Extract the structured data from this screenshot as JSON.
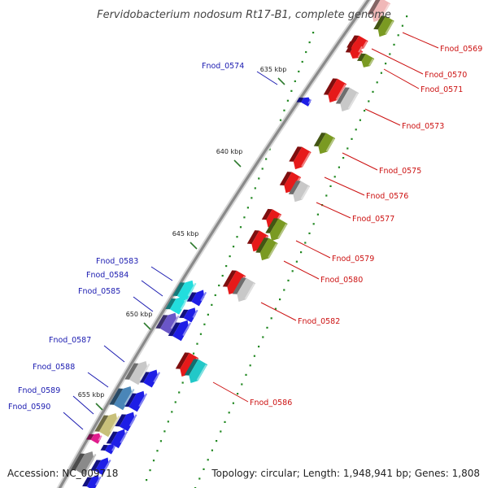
{
  "title": "Fervidobacterium nodosum Rt17-B1, complete genome",
  "footer": {
    "accession": "Accession: NC_009718",
    "stats": "Topology: circular; Length: 1,948,941 bp; Genes: 1,808"
  },
  "ticks": [
    {
      "label": "635 kbp"
    },
    {
      "label": "640 kbp"
    },
    {
      "label": "645 kbp"
    },
    {
      "label": "650 kbp"
    },
    {
      "label": "655 kbp"
    }
  ],
  "genes": {
    "inner": [
      {
        "label": "Fnod_0574",
        "color": "#1e1ee6"
      },
      {
        "label": "Fnod_0583",
        "color": "#22dddd"
      },
      {
        "label": "Fnod_0584",
        "color": "#22dddd"
      },
      {
        "label": "Fnod_0585",
        "color": "#6a56c8"
      },
      {
        "label": "Fnod_0587",
        "color": "#c8c8c8"
      },
      {
        "label": "Fnod_0588",
        "color": "#4a86b8"
      },
      {
        "label": "Fnod_0589",
        "color": "#c8c07a"
      },
      {
        "label": "Fnod_0590",
        "color": "#e01c8c"
      }
    ],
    "outer": [
      {
        "label": "Fnod_0569",
        "color": "#7a9a22"
      },
      {
        "label": "Fnod_0570",
        "color": "#e61a1a"
      },
      {
        "label": "Fnod_0571",
        "color": "#7a9a22"
      },
      {
        "label": "Fnod_0573",
        "color": "#c8c8c8"
      },
      {
        "label": "Fnod_0575",
        "color": "#7a9a22"
      },
      {
        "label": "Fnod_0576",
        "color": "#e61a1a"
      },
      {
        "label": "Fnod_0577",
        "color": "#c8c8c8"
      },
      {
        "label": "Fnod_0579",
        "color": "#7a9a22"
      },
      {
        "label": "Fnod_0580",
        "color": "#7a9a22"
      },
      {
        "label": "Fnod_0582",
        "color": "#c8c8c8"
      },
      {
        "label": "Fnod_0586",
        "color": "#22c8c8"
      }
    ]
  },
  "colors": {
    "backbone": "#8c8c8c",
    "forward_unlabeled": "#e61a1a",
    "reverse_unlabeled": "#1e1ee6",
    "gc_skew": "#228822",
    "label_blue": "#1a1ab0",
    "label_red": "#cc1111"
  }
}
